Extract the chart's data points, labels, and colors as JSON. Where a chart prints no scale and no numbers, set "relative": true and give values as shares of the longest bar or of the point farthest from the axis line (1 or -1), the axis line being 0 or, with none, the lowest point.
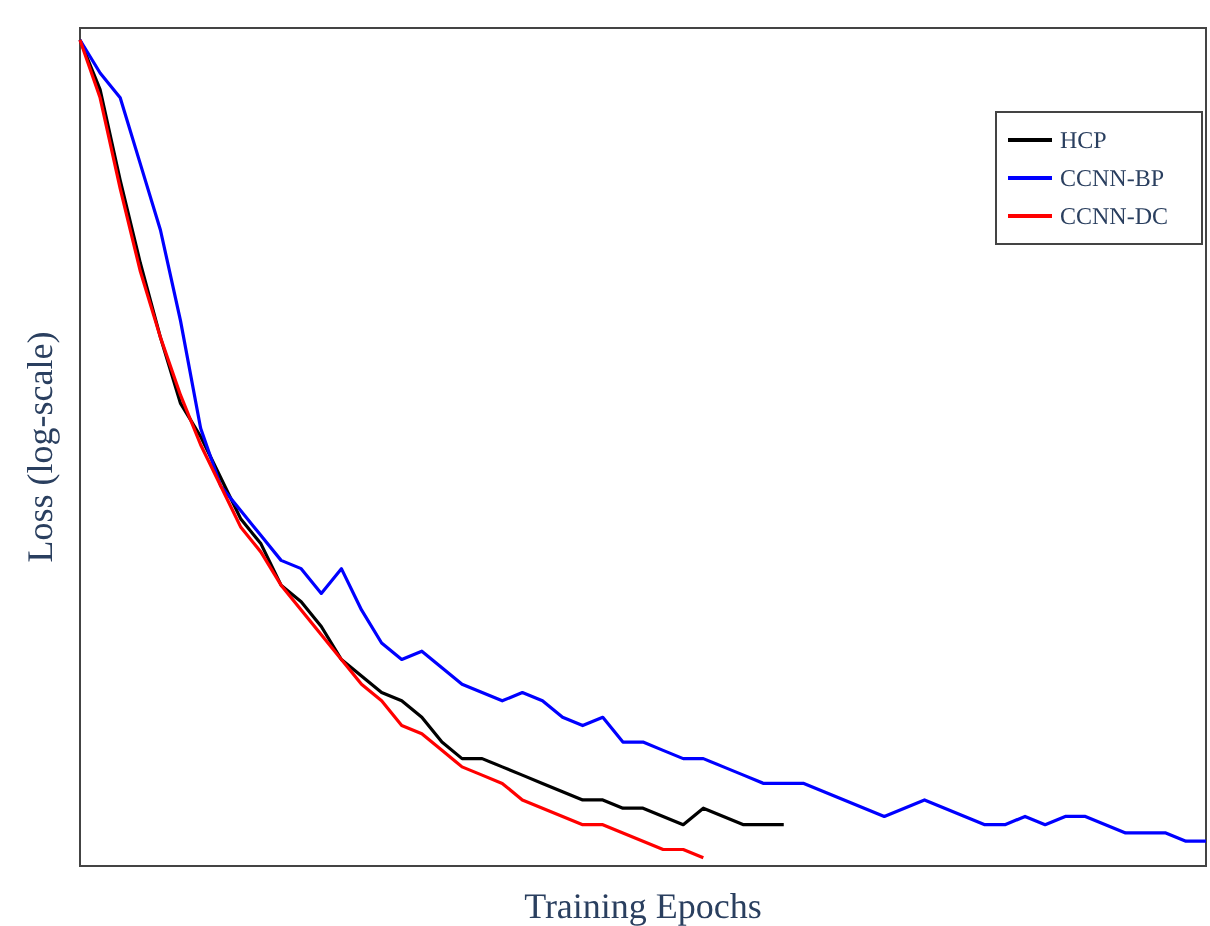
{
  "chart_data": {
    "type": "line",
    "relative": true,
    "xlabel": "Training Epochs",
    "ylabel": "Loss (log-scale)",
    "legend": "top right",
    "line_style": "solid",
    "categories": [
      null,
      null,
      null,
      null,
      null,
      null,
      null,
      null,
      null,
      null,
      null,
      null,
      null,
      null,
      null,
      null,
      null,
      null,
      null,
      null,
      null,
      null,
      null,
      null,
      null,
      null,
      null,
      null,
      null,
      null,
      null,
      null,
      null,
      null,
      null,
      null,
      null,
      null,
      null,
      null,
      null,
      null,
      null,
      null,
      null,
      null,
      null,
      null,
      null,
      null,
      null,
      null,
      null,
      null,
      null,
      null,
      null
    ],
    "series": [
      {
        "name": "HCP",
        "color": "#000000",
        "values": [
          1.0,
          0.94,
          0.83,
          0.73,
          0.64,
          0.56,
          0.52,
          0.47,
          0.42,
          0.39,
          0.34,
          0.32,
          0.29,
          0.25,
          0.23,
          0.21,
          0.2,
          0.18,
          0.15,
          0.13,
          0.13,
          0.12,
          0.11,
          0.1,
          0.09,
          0.08,
          0.08,
          0.07,
          0.07,
          0.06,
          0.05,
          0.07,
          0.06,
          0.05,
          0.05,
          0.05,
          null,
          null,
          null,
          null,
          null,
          null,
          null,
          null,
          null,
          null,
          null,
          null,
          null,
          null,
          null,
          null,
          null,
          null,
          null,
          null,
          null
        ]
      },
      {
        "name": "CCNN-BP",
        "color": "#0000ff",
        "values": [
          1.0,
          0.96,
          0.93,
          0.85,
          0.77,
          0.66,
          0.53,
          0.46,
          0.43,
          0.4,
          0.37,
          0.36,
          0.33,
          0.36,
          0.31,
          0.27,
          0.25,
          0.26,
          0.24,
          0.22,
          0.21,
          0.2,
          0.21,
          0.2,
          0.18,
          0.17,
          0.18,
          0.15,
          0.15,
          0.14,
          0.13,
          0.13,
          0.12,
          0.11,
          0.1,
          0.1,
          0.1,
          0.09,
          0.08,
          0.07,
          0.06,
          0.07,
          0.08,
          0.07,
          0.06,
          0.05,
          0.05,
          0.06,
          0.05,
          0.06,
          0.06,
          0.05,
          0.04,
          0.04,
          0.04,
          0.03,
          0.03
        ]
      },
      {
        "name": "CCNN-DC",
        "color": "#ff0000",
        "values": [
          1.0,
          0.93,
          0.82,
          0.72,
          0.64,
          0.57,
          0.51,
          0.46,
          0.41,
          0.38,
          0.34,
          0.31,
          0.28,
          0.25,
          0.22,
          0.2,
          0.17,
          0.16,
          0.14,
          0.12,
          0.11,
          0.1,
          0.08,
          0.07,
          0.06,
          0.05,
          0.05,
          0.04,
          0.03,
          0.02,
          0.02,
          0.01,
          null,
          null,
          null,
          null,
          null,
          null,
          null,
          null,
          null,
          null,
          null,
          null,
          null,
          null,
          null,
          null,
          null,
          null,
          null,
          null,
          null,
          null,
          null,
          null,
          null
        ]
      }
    ]
  }
}
